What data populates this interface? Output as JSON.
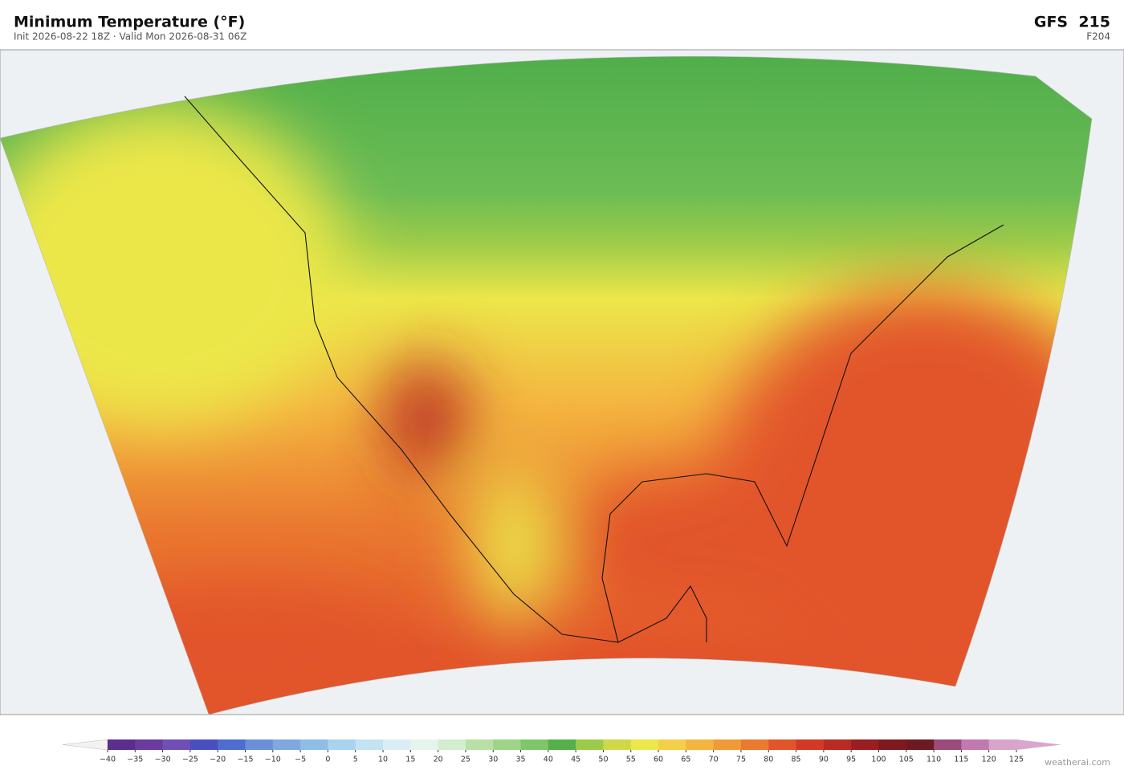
{
  "header": {
    "title": "Minimum Temperature  (°F)",
    "subtitle": "Init 2026-08-22 18Z  ·  Valid Mon 2026-08-31 06Z",
    "model": "GFS  215",
    "forecast_hour": "F204"
  },
  "colorbar": {
    "ticks": [
      {
        "value": -40,
        "label": "−40"
      },
      {
        "value": -35,
        "label": "−35"
      },
      {
        "value": -30,
        "label": "−30"
      },
      {
        "value": -25,
        "label": "−25"
      },
      {
        "value": -20,
        "label": "−20"
      },
      {
        "value": -15,
        "label": "−15"
      },
      {
        "value": -10,
        "label": "−10"
      },
      {
        "value": -5,
        "label": "−5"
      },
      0,
      5,
      10,
      15,
      20,
      25,
      30,
      35,
      40,
      45,
      50,
      55,
      60,
      65,
      70,
      75,
      80,
      85,
      90,
      95,
      100,
      105,
      110,
      115,
      120,
      125
    ],
    "colors": [
      "#5b2d8e",
      "#6a3a9e",
      "#6f4fb5",
      "#4a4fc0",
      "#4f6cd0",
      "#6a8fd8",
      "#7fa8e0",
      "#8ebde6",
      "#a9d3ee",
      "#c3e3f2",
      "#d8eef4",
      "#e6f4ee",
      "#d4ecd0",
      "#b9e0a4",
      "#9dd487",
      "#7fc66a",
      "#55b04c",
      "#9ccb4a",
      "#cfd848",
      "#ece74a",
      "#f4cf48",
      "#f4b540",
      "#f09a38",
      "#ea7a30",
      "#e2542a",
      "#d23a26",
      "#b82a24",
      "#9a1e22",
      "#7e1a1e",
      "#6e1a22",
      "#9c4a7a",
      "#c07ab0",
      "#d8a4cc"
    ],
    "extend_colors": [
      "#f2f2f2",
      "#d9a6cf"
    ]
  },
  "footer": {
    "credit": "weatherai.com"
  }
}
